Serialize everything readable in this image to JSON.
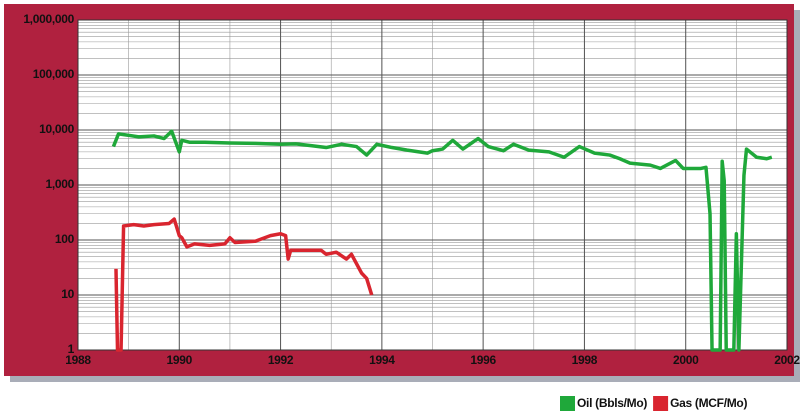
{
  "chart_data": {
    "type": "line",
    "log_scale_y": true,
    "grid": true,
    "minor_grid": true,
    "legend": "bottom-right",
    "xlim": [
      1988,
      2002
    ],
    "xticks": [
      1988,
      1990,
      1992,
      1994,
      1996,
      1998,
      2000,
      2002
    ],
    "ylim": [
      1,
      1000000
    ],
    "yticks": [
      1,
      10,
      100,
      {
        "value": 1000,
        "label": "1,000"
      },
      {
        "value": 10000,
        "label": "10,000"
      },
      {
        "value": 100000,
        "label": "100,000"
      },
      {
        "value": 1000000,
        "label": "1,000,000"
      }
    ],
    "series": [
      {
        "name": "Oil (Bbls/Mo)",
        "color": "#1fa83a",
        "x": [
          1988.7,
          1988.8,
          1989.0,
          1989.2,
          1989.5,
          1989.7,
          1989.85,
          1990.0,
          1990.05,
          1990.2,
          1990.5,
          1991.0,
          1991.5,
          1992.0,
          1992.3,
          1992.6,
          1992.9,
          1993.2,
          1993.5,
          1993.7,
          1993.9,
          1994.2,
          1994.5,
          1994.9,
          1995.0,
          1995.2,
          1995.4,
          1995.6,
          1995.9,
          1996.1,
          1996.4,
          1996.6,
          1996.9,
          1997.3,
          1997.6,
          1997.9,
          1998.2,
          1998.5,
          1998.7,
          1998.9,
          1999.3,
          1999.5,
          1999.8,
          1999.95,
          2000.3,
          2000.4,
          2000.48,
          2000.52,
          2000.68,
          2000.72,
          2000.76,
          2000.8,
          2000.95,
          2001.0,
          2001.05,
          2001.15,
          2001.2,
          2001.4,
          2001.6,
          2001.7
        ],
        "values": [
          5000,
          8500,
          8000,
          7500,
          7800,
          7000,
          9500,
          4000,
          6500,
          6000,
          6000,
          5800,
          5700,
          5500,
          5600,
          5200,
          4800,
          5500,
          5000,
          3500,
          5500,
          4800,
          4300,
          3800,
          4200,
          4500,
          6500,
          4500,
          7000,
          5000,
          4200,
          5500,
          4300,
          4000,
          3200,
          5000,
          3800,
          3500,
          3000,
          2500,
          2300,
          2000,
          2800,
          2000,
          2000,
          2100,
          300,
          1,
          1,
          2700,
          1200,
          1,
          1,
          130,
          1,
          1500,
          4500,
          3200,
          3000,
          3200
        ]
      },
      {
        "name": "Gas (MCF/Mo)",
        "color": "#d9252f",
        "x": [
          1988.75,
          1988.78,
          1988.85,
          1988.9,
          1989.1,
          1989.3,
          1989.5,
          1989.8,
          1989.9,
          1990.0,
          1990.05,
          1990.15,
          1990.3,
          1990.6,
          1990.9,
          1991.0,
          1991.1,
          1991.5,
          1991.8,
          1992.0,
          1992.1,
          1992.15,
          1992.2,
          1992.5,
          1992.8,
          1992.9,
          1993.1,
          1993.3,
          1993.4,
          1993.6,
          1993.7,
          1993.8
        ],
        "values": [
          30,
          1,
          1,
          180,
          190,
          180,
          190,
          200,
          240,
          120,
          110,
          75,
          85,
          80,
          85,
          110,
          90,
          95,
          120,
          130,
          120,
          45,
          65,
          65,
          65,
          55,
          60,
          45,
          55,
          25,
          20,
          10
        ]
      }
    ]
  }
}
